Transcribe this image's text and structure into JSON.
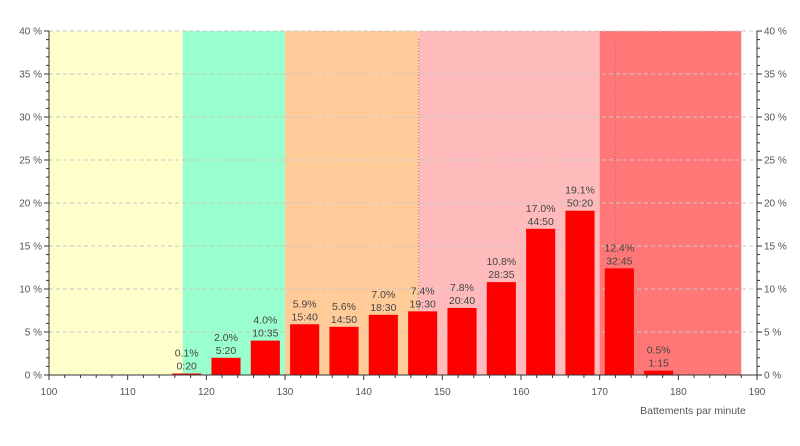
{
  "chart_data": {
    "type": "bar",
    "title": "",
    "xlabel": "Battements par minute",
    "ylabel": "",
    "xlim": [
      100,
      190
    ],
    "ylim": [
      0,
      40
    ],
    "x_ticks": [
      100,
      110,
      120,
      130,
      140,
      150,
      160,
      170,
      180,
      190
    ],
    "y_ticks": [
      0,
      5,
      10,
      15,
      20,
      25,
      30,
      35,
      40
    ],
    "y_tick_suffix": " %",
    "grid": true,
    "zones": [
      {
        "from": 100,
        "to": 117,
        "color": "#ffffcc"
      },
      {
        "from": 117,
        "to": 130,
        "color": "#99ffcc"
      },
      {
        "from": 130,
        "to": 147,
        "color": "#ffcc99"
      },
      {
        "from": 147,
        "to": 170,
        "color": "#ffbbbb"
      },
      {
        "from": 170,
        "to": 188,
        "color": "#ff7777"
      }
    ],
    "dotted_lines_x": [
      147,
      172
    ],
    "bar_color": "#ff0000",
    "bins": [
      {
        "x": 117.5,
        "value": 0.1,
        "pct_label": "0.1%",
        "time_label": "0:20"
      },
      {
        "x": 122.5,
        "value": 2.0,
        "pct_label": "2.0%",
        "time_label": "5:20"
      },
      {
        "x": 127.5,
        "value": 4.0,
        "pct_label": "4.0%",
        "time_label": "10:35"
      },
      {
        "x": 132.5,
        "value": 5.9,
        "pct_label": "5.9%",
        "time_label": "15:40"
      },
      {
        "x": 137.5,
        "value": 5.6,
        "pct_label": "5.6%",
        "time_label": "14:50"
      },
      {
        "x": 142.5,
        "value": 7.0,
        "pct_label": "7.0%",
        "time_label": "18:30"
      },
      {
        "x": 147.5,
        "value": 7.4,
        "pct_label": "7.4%",
        "time_label": "19:30"
      },
      {
        "x": 152.5,
        "value": 7.8,
        "pct_label": "7.8%",
        "time_label": "20:40"
      },
      {
        "x": 157.5,
        "value": 10.8,
        "pct_label": "10.8%",
        "time_label": "28:35"
      },
      {
        "x": 162.5,
        "value": 17.0,
        "pct_label": "17.0%",
        "time_label": "44:50"
      },
      {
        "x": 167.5,
        "value": 19.1,
        "pct_label": "19.1%",
        "time_label": "50:20"
      },
      {
        "x": 172.5,
        "value": 12.4,
        "pct_label": "12.4%",
        "time_label": "32:45"
      },
      {
        "x": 177.5,
        "value": 0.5,
        "pct_label": "0.5%",
        "time_label": "1:15"
      }
    ]
  }
}
